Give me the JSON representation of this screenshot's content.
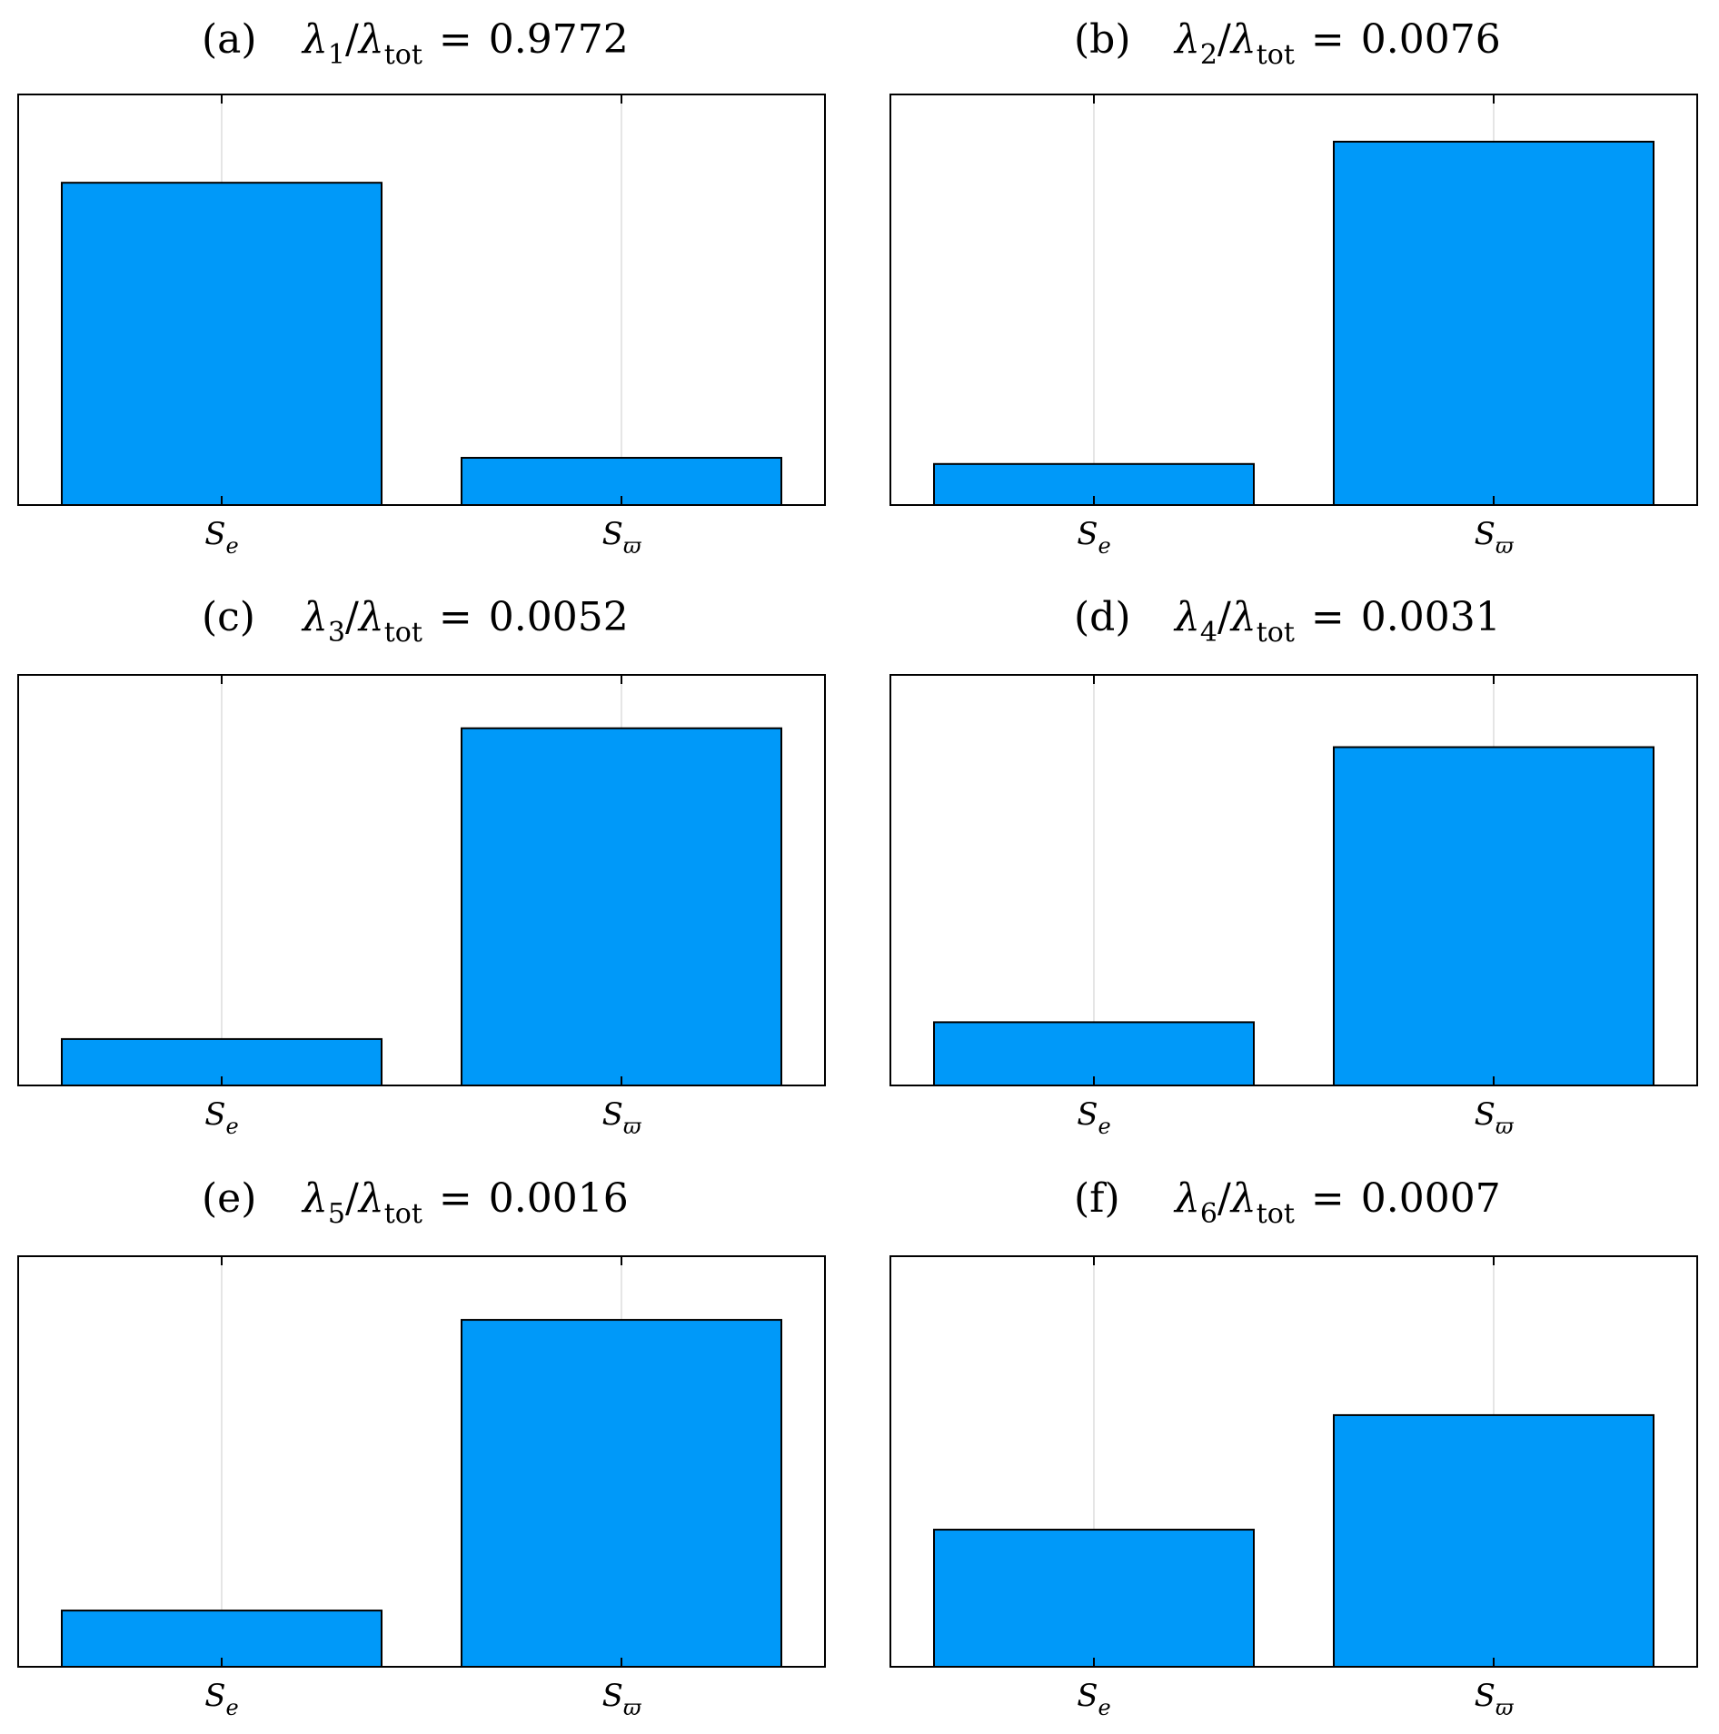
{
  "chart_data": [
    {
      "type": "bar",
      "panel_label": "(a)",
      "ratio": {
        "num_sym": "λ",
        "num_sub": "1",
        "den_sym": "λ",
        "den_sub": "tot",
        "eq": "=",
        "value": "0.9772"
      },
      "categories": [
        {
          "base": "S",
          "sub": "e"
        },
        {
          "base": "S",
          "sub": "ϖ"
        }
      ],
      "values": [
        0.785,
        0.115
      ],
      "ylim": [
        0,
        1
      ],
      "grid": "vertical",
      "color": "#0099f9"
    },
    {
      "type": "bar",
      "panel_label": "(b)",
      "ratio": {
        "num_sym": "λ",
        "num_sub": "2",
        "den_sym": "λ",
        "den_sub": "tot",
        "eq": "=",
        "value": "0.0076"
      },
      "categories": [
        {
          "base": "S",
          "sub": "e"
        },
        {
          "base": "S",
          "sub": "ϖ"
        }
      ],
      "values": [
        0.1,
        0.885
      ],
      "ylim": [
        0,
        1
      ],
      "grid": "vertical",
      "color": "#0099f9"
    },
    {
      "type": "bar",
      "panel_label": "(c)",
      "ratio": {
        "num_sym": "λ",
        "num_sub": "3",
        "den_sym": "λ",
        "den_sub": "tot",
        "eq": "=",
        "value": "0.0052"
      },
      "categories": [
        {
          "base": "S",
          "sub": "e"
        },
        {
          "base": "S",
          "sub": "ϖ"
        }
      ],
      "values": [
        0.113,
        0.87
      ],
      "ylim": [
        0,
        1
      ],
      "grid": "vertical",
      "color": "#0099f9"
    },
    {
      "type": "bar",
      "panel_label": "(d)",
      "ratio": {
        "num_sym": "λ",
        "num_sub": "4",
        "den_sym": "λ",
        "den_sub": "tot",
        "eq": "=",
        "value": "0.0031"
      },
      "categories": [
        {
          "base": "S",
          "sub": "e"
        },
        {
          "base": "S",
          "sub": "ϖ"
        }
      ],
      "values": [
        0.154,
        0.824
      ],
      "ylim": [
        0,
        1
      ],
      "grid": "vertical",
      "color": "#0099f9"
    },
    {
      "type": "bar",
      "panel_label": "(e)",
      "ratio": {
        "num_sym": "λ",
        "num_sub": "5",
        "den_sym": "λ",
        "den_sub": "tot",
        "eq": "=",
        "value": "0.0016"
      },
      "categories": [
        {
          "base": "S",
          "sub": "e"
        },
        {
          "base": "S",
          "sub": "ϖ"
        }
      ],
      "values": [
        0.137,
        0.845
      ],
      "ylim": [
        0,
        1
      ],
      "grid": "vertical",
      "color": "#0099f9"
    },
    {
      "type": "bar",
      "panel_label": "(f)",
      "ratio": {
        "num_sym": "λ",
        "num_sub": "6",
        "den_sym": "λ",
        "den_sub": "tot",
        "eq": "=",
        "value": "0.0007"
      },
      "categories": [
        {
          "base": "S",
          "sub": "e"
        },
        {
          "base": "S",
          "sub": "ϖ"
        }
      ],
      "values": [
        0.334,
        0.613
      ],
      "ylim": [
        0,
        1
      ],
      "grid": "vertical",
      "color": "#0099f9"
    }
  ]
}
